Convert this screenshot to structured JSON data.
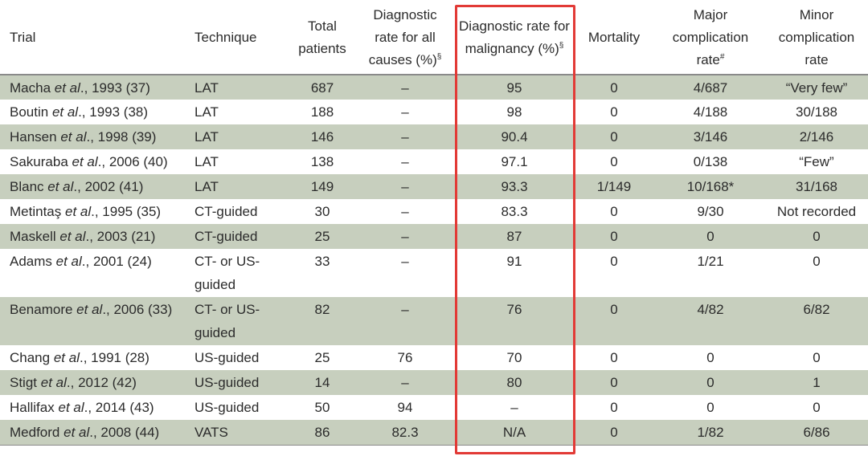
{
  "headers": {
    "trial": "Trial",
    "technique": "Technique",
    "total_patients": "Total patients",
    "diag_all": "Diagnostic rate for all causes (%)",
    "diag_all_sup": "§",
    "diag_malig": "Diagnostic rate for malignancy (%)",
    "diag_malig_sup": "§",
    "mortality": "Mortality",
    "major": "Major complication rate",
    "major_sup": "#",
    "minor": "Minor complication rate"
  },
  "rows": [
    {
      "author": "Macha",
      "etal": "et al",
      "rest": "., 1993 (37)",
      "technique": "LAT",
      "total": "687",
      "diag_all": "–",
      "diag_malig": "95",
      "mortality": "0",
      "major": "4/687",
      "minor": "“Very few”"
    },
    {
      "author": "Boutin",
      "etal": "et al",
      "rest": "., 1993 (38)",
      "technique": "LAT",
      "total": "188",
      "diag_all": "–",
      "diag_malig": "98",
      "mortality": "0",
      "major": "4/188",
      "minor": "30/188"
    },
    {
      "author": "Hansen",
      "etal": "et al",
      "rest": "., 1998 (39)",
      "technique": "LAT",
      "total": "146",
      "diag_all": "–",
      "diag_malig": "90.4",
      "mortality": "0",
      "major": "3/146",
      "minor": "2/146"
    },
    {
      "author": "Sakuraba",
      "etal": "et al",
      "rest": "., 2006 (40)",
      "technique": "LAT",
      "total": "138",
      "diag_all": "–",
      "diag_malig": "97.1",
      "mortality": "0",
      "major": "0/138",
      "minor": "“Few”"
    },
    {
      "author": "Blanc",
      "etal": "et al",
      "rest": "., 2002 (41)",
      "technique": "LAT",
      "total": "149",
      "diag_all": "–",
      "diag_malig": "93.3",
      "mortality": "1/149",
      "major": "10/168*",
      "minor": "31/168"
    },
    {
      "author": "Metintaş",
      "etal": "et al",
      "rest": "., 1995 (35)",
      "technique": "CT-guided",
      "total": "30",
      "diag_all": "–",
      "diag_malig": "83.3",
      "mortality": "0",
      "major": "9/30",
      "minor": "Not recorded"
    },
    {
      "author": "Maskell",
      "etal": "et al",
      "rest": "., 2003 (21)",
      "technique": "CT-guided",
      "total": "25",
      "diag_all": "–",
      "diag_malig": "87",
      "mortality": "0",
      "major": "0",
      "minor": "0"
    },
    {
      "author": "Adams",
      "etal": "et al",
      "rest": "., 2001 (24)",
      "technique": "CT- or US-guided",
      "total": "33",
      "diag_all": "–",
      "diag_malig": "91",
      "mortality": "0",
      "major": "1/21",
      "minor": "0"
    },
    {
      "author": "Benamore",
      "etal": "et al",
      "rest": "., 2006 (33)",
      "technique": "CT- or US-guided",
      "total": "82",
      "diag_all": "–",
      "diag_malig": "76",
      "mortality": "0",
      "major": "4/82",
      "minor": "6/82"
    },
    {
      "author": "Chang",
      "etal": "et al",
      "rest": "., 1991 (28)",
      "technique": "US-guided",
      "total": "25",
      "diag_all": "76",
      "diag_malig": "70",
      "mortality": "0",
      "major": "0",
      "minor": "0"
    },
    {
      "author": "Stigt",
      "etal": "et al",
      "rest": "., 2012 (42)",
      "technique": "US-guided",
      "total": "14",
      "diag_all": "–",
      "diag_malig": "80",
      "mortality": "0",
      "major": "0",
      "minor": "1"
    },
    {
      "author": "Hallifax",
      "etal": "et al",
      "rest": "., 2014 (43)",
      "technique": "US-guided",
      "total": "50",
      "diag_all": "94",
      "diag_malig": "–",
      "mortality": "0",
      "major": "0",
      "minor": "0"
    },
    {
      "author": "Medford",
      "etal": "et al",
      "rest": "., 2008 (44)",
      "technique": "VATS",
      "total": "86",
      "diag_all": "82.3",
      "diag_malig": "N/A",
      "mortality": "0",
      "major": "1/82",
      "minor": "6/86"
    }
  ],
  "highlight_color": "#e23a36",
  "shade_color": "#c7cfbe"
}
